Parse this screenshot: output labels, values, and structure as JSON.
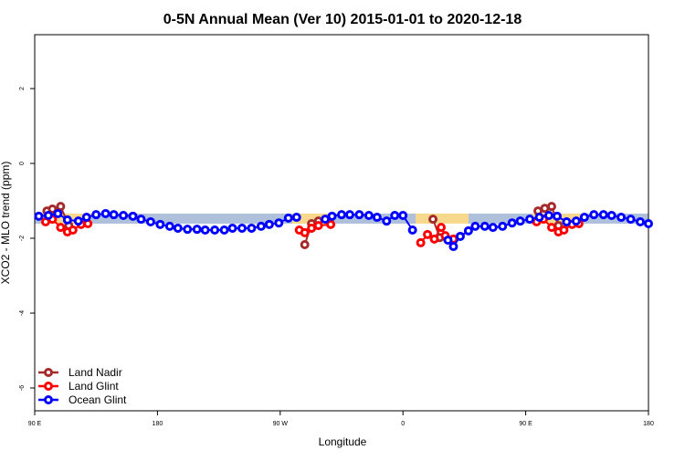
{
  "chart_data": {
    "type": "line",
    "title": "0-5N Annual Mean (Ver 10)   2015-01-01 to 2020-12-18",
    "x_label": "Longitude",
    "y_label": "XCO2 - MLO trend (ppm)",
    "xlim": [
      90,
      540
    ],
    "ylim": [
      -6.61,
      3.44
    ],
    "xticks": [
      {
        "value": 90,
        "label": "90 E"
      },
      180,
      {
        "value": 270,
        "label": "90 W"
      },
      {
        "value": 360,
        "label": "0"
      },
      {
        "value": 450,
        "label": "90 E"
      },
      {
        "value": 540,
        "label": "180"
      }
    ],
    "yticks": [
      -6,
      -4,
      -2,
      0,
      2
    ],
    "legend": "bottom-left",
    "series": [
      {
        "name": "Land Nadir",
        "color": "#a52a2a",
        "x": [
          99,
          103,
          109,
          115,
          null,
          288,
          293,
          298,
          null,
          382,
          387,
          null,
          459,
          464,
          469,
          474
        ],
        "values": [
          -1.27,
          -1.22,
          -1.15,
          -1.66,
          null,
          -2.17,
          -1.61,
          -1.54,
          null,
          -1.49,
          -1.98,
          null,
          -1.27,
          -1.2,
          -1.15,
          -1.66
        ]
      },
      {
        "name": "Land Glint",
        "color": "#ff0000",
        "x": [
          98,
          103,
          109,
          114,
          118,
          124,
          129,
          null,
          284,
          288,
          293,
          298,
          307,
          null,
          373,
          378,
          383,
          388,
          391,
          397,
          null,
          458,
          463,
          469,
          474,
          478,
          484,
          489
        ],
        "values": [
          -1.56,
          -1.49,
          -1.71,
          -1.83,
          -1.78,
          -1.63,
          -1.61,
          null,
          -1.78,
          -1.85,
          -1.73,
          -1.66,
          -1.63,
          null,
          -2.12,
          -1.9,
          -2.02,
          -1.71,
          -1.93,
          -2.02,
          null,
          -1.56,
          -1.49,
          -1.71,
          -1.83,
          -1.78,
          -1.63,
          -1.61
        ]
      },
      {
        "name": "Ocean Glint",
        "color": "#0000ff",
        "x": [
          93,
          100,
          107,
          114,
          122,
          128,
          135,
          142,
          148,
          155,
          162,
          168,
          175,
          182,
          189,
          195,
          202,
          209,
          215,
          222,
          229,
          235,
          242,
          249,
          256,
          262,
          269,
          276,
          282,
          null,
          303,
          308,
          315,
          321,
          328,
          335,
          341,
          348,
          354,
          360,
          367,
          null,
          393,
          397,
          402,
          408,
          413,
          420,
          426,
          433,
          440,
          446,
          453,
          460,
          467,
          473,
          480,
          487,
          493,
          500,
          507,
          513,
          520,
          527,
          534,
          540
        ],
        "values": [
          -1.41,
          -1.39,
          -1.34,
          -1.51,
          -1.54,
          -1.44,
          -1.37,
          -1.34,
          -1.37,
          -1.39,
          -1.41,
          -1.49,
          -1.56,
          -1.63,
          -1.68,
          -1.73,
          -1.76,
          -1.76,
          -1.78,
          -1.78,
          -1.78,
          -1.73,
          -1.73,
          -1.73,
          -1.68,
          -1.63,
          -1.59,
          -1.46,
          -1.44,
          null,
          -1.49,
          -1.41,
          -1.37,
          -1.37,
          -1.37,
          -1.39,
          -1.44,
          -1.54,
          -1.39,
          -1.39,
          -1.78,
          null,
          -2.05,
          -2.22,
          -1.95,
          -1.8,
          -1.68,
          -1.68,
          -1.71,
          -1.68,
          -1.59,
          -1.54,
          -1.49,
          -1.44,
          -1.39,
          -1.41,
          -1.56,
          -1.54,
          -1.44,
          -1.37,
          -1.37,
          -1.39,
          -1.44,
          -1.49,
          -1.56,
          -1.61
        ]
      }
    ]
  }
}
